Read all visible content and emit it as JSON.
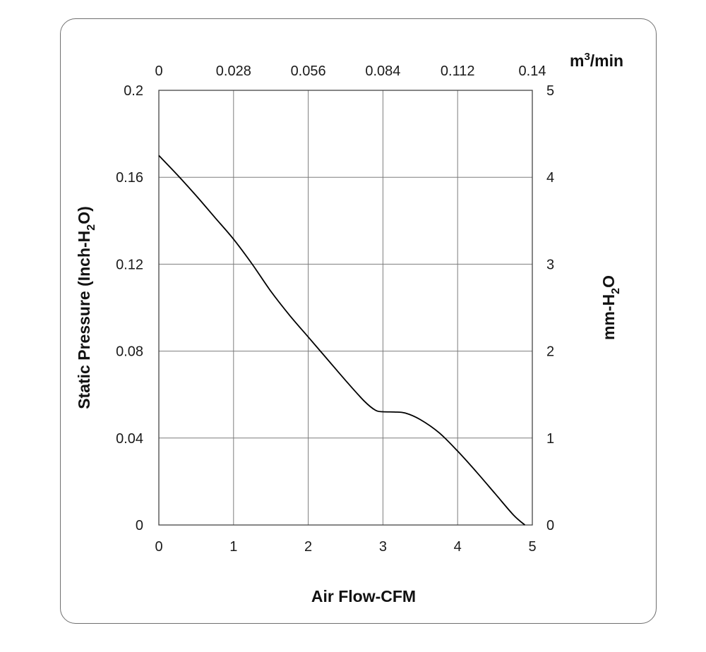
{
  "chart_data": {
    "type": "line",
    "xlabel": "Air Flow-CFM",
    "ylabel": "Static Pressure (Inch-H",
    "ylabel_sub": "2",
    "ylabel_end": "O)",
    "y2label": "mm-H",
    "y2label_sub": "2",
    "y2label_end": "O",
    "x2label": "m",
    "x2label_sup": "3",
    "x2label_end": "/min",
    "xlim": [
      0,
      5
    ],
    "ylim": [
      0,
      0.2
    ],
    "x_ticks": [
      "0",
      "1",
      "2",
      "3",
      "4",
      "5"
    ],
    "y_ticks": [
      "0",
      "0.04",
      "0.08",
      "0.12",
      "0.16",
      "0.2"
    ],
    "x2_ticks": [
      "0",
      "0.028",
      "0.056",
      "0.084",
      "0.112",
      "0.14"
    ],
    "y2_ticks": [
      "0",
      "1",
      "2",
      "3",
      "4",
      "5"
    ],
    "grid": true,
    "series": [
      {
        "x": [
          0,
          0.25,
          0.5,
          0.75,
          1.0,
          1.25,
          1.5,
          1.75,
          2.0,
          2.25,
          2.5,
          2.75,
          2.9,
          3.0,
          3.15,
          3.3,
          3.5,
          3.75,
          4.0,
          4.25,
          4.5,
          4.75,
          4.9
        ],
        "y": [
          0.17,
          0.161,
          0.1515,
          0.1415,
          0.1315,
          0.12,
          0.1075,
          0.0965,
          0.0865,
          0.0765,
          0.0665,
          0.057,
          0.0528,
          0.0521,
          0.052,
          0.0515,
          0.0485,
          0.0425,
          0.034,
          0.0245,
          0.0145,
          0.0045,
          0.0
        ]
      }
    ]
  }
}
